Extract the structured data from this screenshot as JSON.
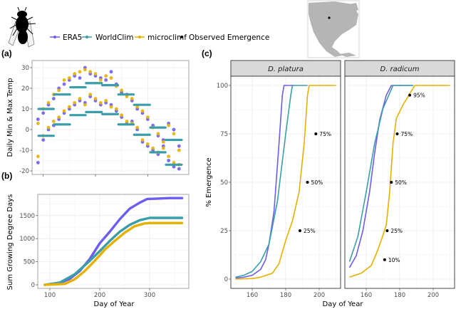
{
  "colors": {
    "ERA5": "#6b5cf2",
    "WorldClim": "#3a9ea8",
    "microclimf": "#e6b000",
    "observed": "#000000"
  },
  "icons": {
    "organism": "fly-silhouette-icon",
    "location_map": "north-america-map-icon"
  },
  "legend": {
    "items": [
      {
        "key": "ERA5",
        "label": "ERA5"
      },
      {
        "key": "WorldClim",
        "label": "WorldClim"
      },
      {
        "key": "microclimf",
        "label": "microclimf"
      }
    ],
    "observed_label": "Observed Emergence"
  },
  "chart_data": [
    {
      "panel": "(a)",
      "type": "scatter",
      "ylabel": "Daily Min & Max Temp",
      "xlabel": "",
      "xlim": [
        89,
        379
      ],
      "ylim": [
        -22,
        33
      ],
      "x_ticks": [
        100,
        200,
        300
      ],
      "y_ticks": [
        -20,
        -10,
        0,
        10,
        20,
        30
      ],
      "grid": true,
      "days": [
        90,
        100,
        110,
        120,
        130,
        140,
        150,
        160,
        170,
        180,
        190,
        200,
        210,
        220,
        230,
        240,
        250,
        260,
        270,
        280,
        290,
        300,
        310,
        320,
        330,
        340,
        350,
        360
      ],
      "series": [
        {
          "key": "ERA5",
          "kind": "daily",
          "max": [
            5,
            8,
            12,
            15,
            20,
            22,
            24,
            26,
            25,
            30,
            27,
            26,
            25,
            24,
            28,
            22,
            18,
            17,
            14,
            10,
            8,
            5,
            2,
            -3,
            -5,
            3,
            0,
            -8
          ],
          "min": [
            -16,
            -5,
            0,
            2,
            5,
            8,
            10,
            12,
            14,
            13,
            16,
            14,
            12,
            13,
            12,
            9,
            6,
            3,
            4,
            0,
            -6,
            -8,
            -10,
            -12,
            -8,
            -15,
            -18,
            -19
          ]
        },
        {
          "key": "microclimf",
          "kind": "daily",
          "max": [
            3,
            10,
            13,
            17,
            19,
            24,
            25,
            27,
            28,
            29,
            28,
            27,
            24,
            26,
            25,
            21,
            19,
            16,
            15,
            11,
            9,
            6,
            1,
            -2,
            -6,
            2,
            -2,
            -10
          ],
          "min": [
            -13,
            -3,
            1,
            4,
            6,
            9,
            11,
            13,
            15,
            12,
            17,
            15,
            13,
            14,
            11,
            10,
            7,
            4,
            3,
            1,
            -5,
            -7,
            -9,
            -11,
            -9,
            -13,
            -16,
            -17
          ]
        },
        {
          "key": "WorldClim",
          "kind": "monthly",
          "months": [
            {
              "start": 91,
              "end": 120,
              "max": 10,
              "min": -3
            },
            {
              "start": 121,
              "end": 151,
              "max": 17,
              "min": 2.5
            },
            {
              "start": 152,
              "end": 181,
              "max": 20.5,
              "min": 7
            },
            {
              "start": 182,
              "end": 212,
              "max": 22.5,
              "min": 8.5
            },
            {
              "start": 213,
              "end": 243,
              "max": 21.5,
              "min": 7.5
            },
            {
              "start": 244,
              "end": 273,
              "max": 17,
              "min": 2.5
            },
            {
              "start": 274,
              "end": 304,
              "max": 12,
              "min": -2.5
            },
            {
              "start": 305,
              "end": 334,
              "max": 1,
              "min": -11
            },
            {
              "start": 335,
              "end": 365,
              "max": -5,
              "min": -17
            }
          ]
        }
      ]
    },
    {
      "panel": "(b)",
      "type": "line",
      "ylabel": "Sum Growing Degree Days",
      "xlabel": "Day of Year",
      "xlim": [
        89,
        379
      ],
      "ylim": [
        -80,
        1960
      ],
      "x_ticks": [
        100,
        200,
        300
      ],
      "y_ticks": [
        0,
        500,
        1000,
        1500
      ],
      "grid": true,
      "series": [
        {
          "key": "ERA5",
          "x": [
            90,
            120,
            140,
            160,
            180,
            200,
            220,
            240,
            260,
            280,
            295,
            320,
            340,
            365
          ],
          "y": [
            0,
            40,
            130,
            300,
            560,
            900,
            1150,
            1420,
            1650,
            1780,
            1860,
            1870,
            1880,
            1880
          ]
        },
        {
          "key": "WorldClim",
          "x": [
            90,
            120,
            150,
            180,
            200,
            220,
            240,
            260,
            280,
            300,
            365
          ],
          "y": [
            0,
            50,
            230,
            520,
            730,
            950,
            1150,
            1300,
            1400,
            1450,
            1450
          ]
        },
        {
          "key": "microclimf",
          "x": [
            90,
            130,
            150,
            170,
            190,
            210,
            230,
            250,
            270,
            290,
            300,
            365
          ],
          "y": [
            0,
            20,
            120,
            300,
            520,
            760,
            950,
            1130,
            1270,
            1330,
            1340,
            1340
          ]
        }
      ]
    },
    {
      "panel": "(c)",
      "type": "line",
      "ylabel": "% Emergence",
      "xlabel": "Day of Year",
      "xlim": [
        147,
        212.6
      ],
      "ylim": [
        -4.8,
        104.8
      ],
      "x_ticks": [
        160,
        180,
        200
      ],
      "y_ticks": [
        0,
        25,
        50,
        75,
        100
      ],
      "grid": true,
      "facets": [
        {
          "title": "D. platura",
          "series": [
            {
              "key": "ERA5",
              "x": [
                150,
                155,
                160,
                165,
                168,
                170,
                173,
                176,
                178,
                179,
                185
              ],
              "y": [
                0.5,
                1,
                2,
                5,
                10,
                18,
                35,
                70,
                95,
                100,
                100
              ]
            },
            {
              "key": "WorldClim",
              "x": [
                150,
                155,
                160,
                165,
                170,
                175,
                180,
                183,
                184,
                193
              ],
              "y": [
                1,
                2,
                4,
                9,
                18,
                40,
                75,
                95,
                100,
                100
              ]
            },
            {
              "key": "microclimf",
              "x": [
                150,
                160,
                165,
                172,
                176,
                180,
                184,
                188,
                191,
                193,
                194,
                210
              ],
              "y": [
                0,
                0.3,
                1,
                3,
                8,
                20,
                30,
                45,
                70,
                95,
                100,
                100
              ]
            }
          ],
          "observed": [
            {
              "x": 188.5,
              "y": 25,
              "label": "25%"
            },
            {
              "x": 193,
              "y": 50,
              "label": "50%"
            },
            {
              "x": 198,
              "y": 75,
              "label": "75%"
            }
          ]
        },
        {
          "title": "D. radicum",
          "series": [
            {
              "key": "ERA5",
              "x": [
                150,
                154,
                158,
                162,
                165,
                168,
                172,
                175,
                188
              ],
              "y": [
                6,
                12,
                25,
                45,
                65,
                82,
                95,
                100,
                100
              ]
            },
            {
              "key": "WorldClim",
              "x": [
                150,
                155,
                160,
                165,
                170,
                176,
                188
              ],
              "y": [
                9,
                22,
                45,
                70,
                88,
                100,
                100
              ]
            },
            {
              "key": "microclimf",
              "x": [
                150,
                157,
                163,
                166,
                169,
                172,
                174,
                176,
                178,
                182,
                189,
                210
              ],
              "y": [
                1,
                3,
                7,
                13,
                20,
                28,
                45,
                70,
                83,
                90,
                100,
                100
              ]
            }
          ],
          "observed": [
            {
              "x": 171,
              "y": 10,
              "label": "10%"
            },
            {
              "x": 172.5,
              "y": 25,
              "label": "25%"
            },
            {
              "x": 175,
              "y": 50,
              "label": "50%"
            },
            {
              "x": 178.5,
              "y": 75,
              "label": "75%"
            },
            {
              "x": 186,
              "y": 95,
              "label": "95%"
            }
          ]
        }
      ]
    }
  ]
}
